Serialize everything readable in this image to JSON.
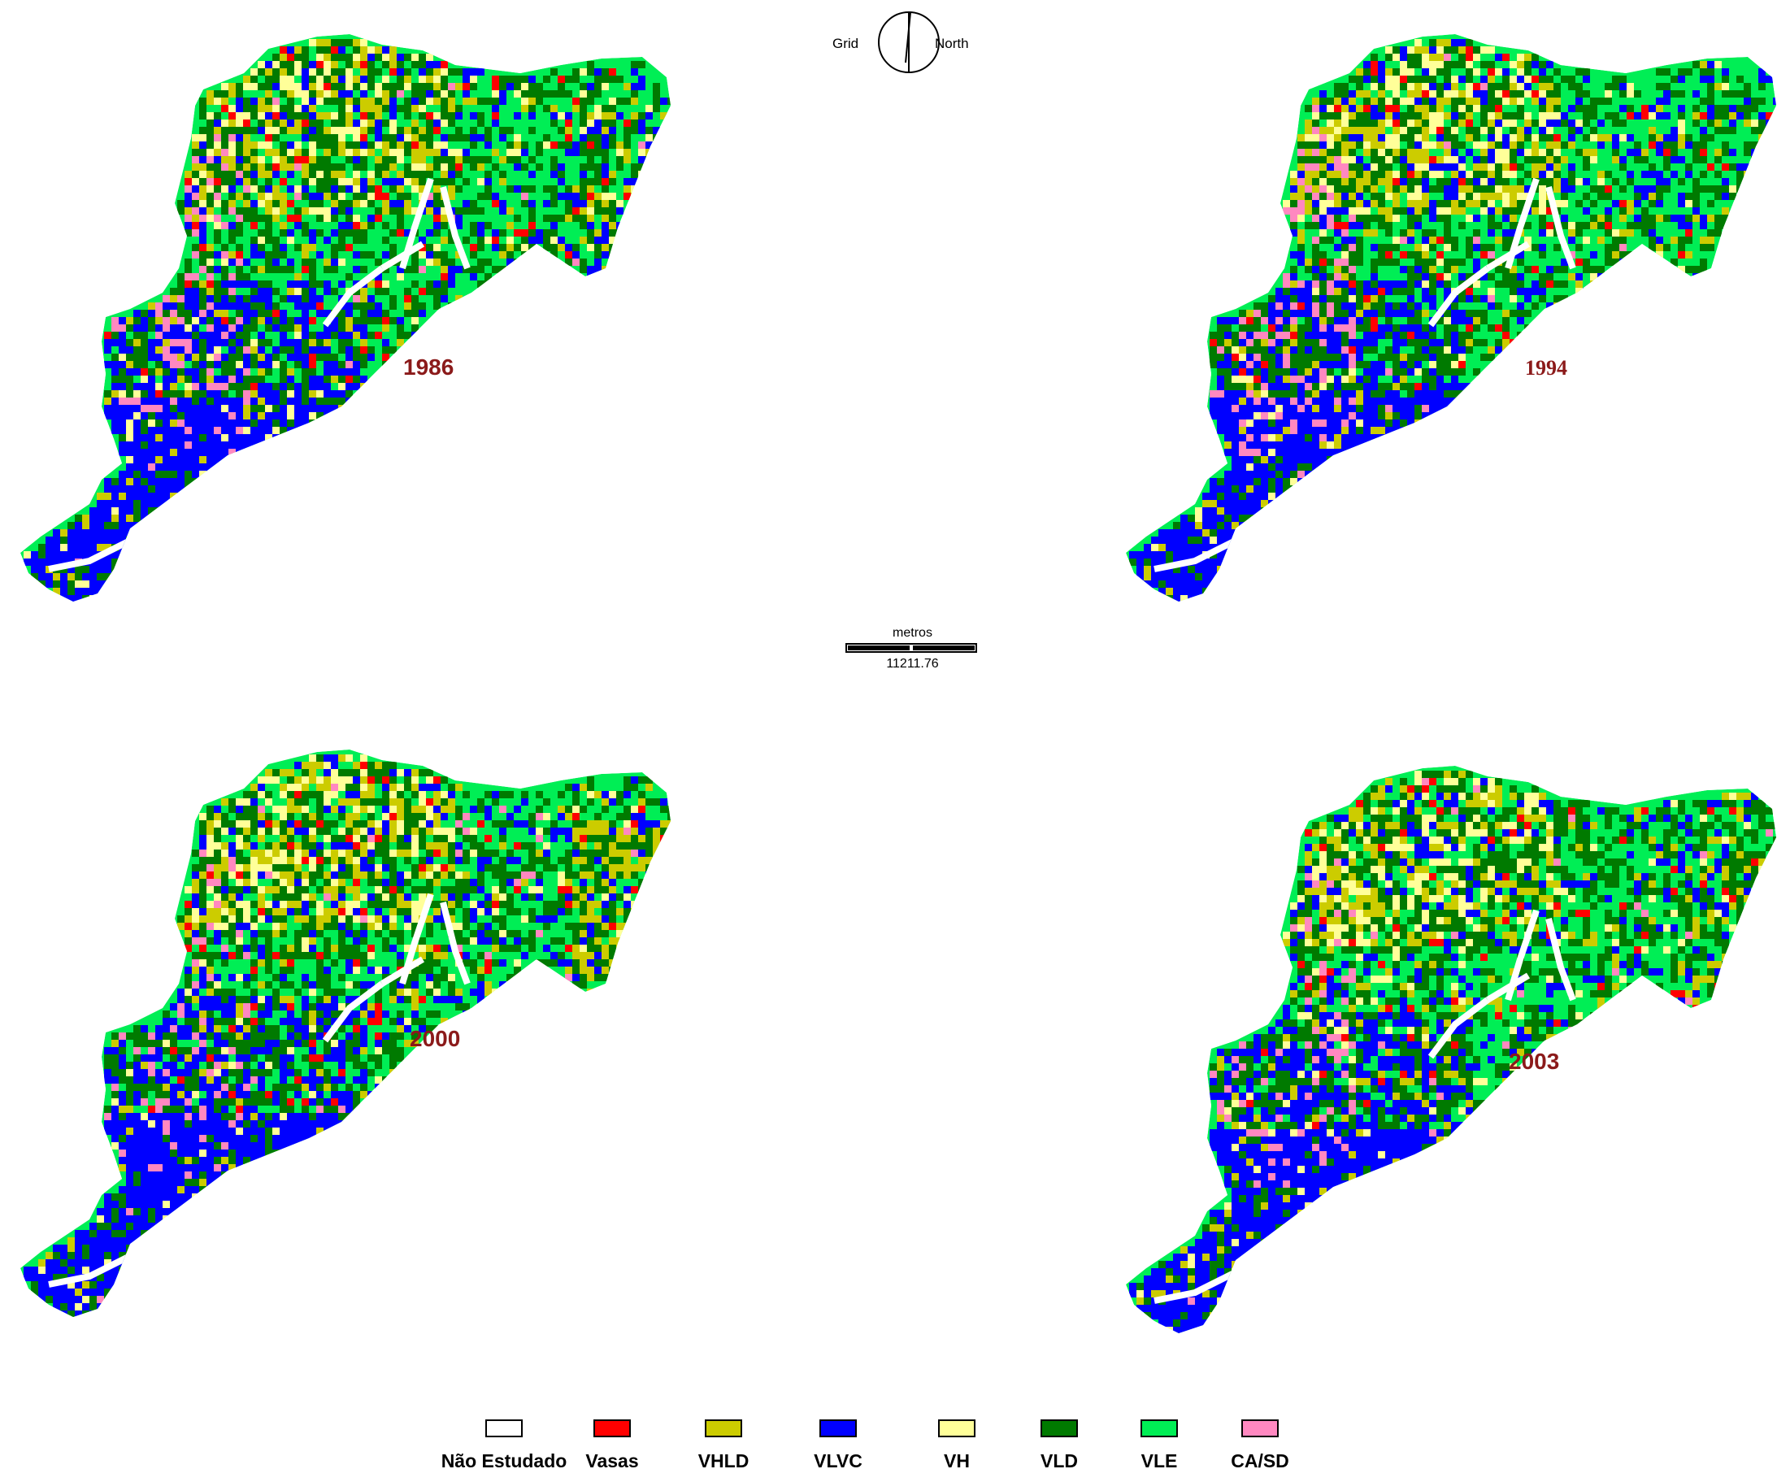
{
  "compass": {
    "left_label": "Grid",
    "right_label": "North"
  },
  "scale_bar": {
    "unit_label": "metros",
    "value": "11211.76"
  },
  "maps": [
    {
      "year": "1986"
    },
    {
      "year": "1994"
    },
    {
      "year": "2000"
    },
    {
      "year": "2003"
    }
  ],
  "legend": {
    "items": [
      {
        "label": "Não Estudado",
        "color": "#ffffff"
      },
      {
        "label": "Vasas",
        "color": "#ff0000"
      },
      {
        "label": "VHLD",
        "color": "#cccc00"
      },
      {
        "label": "VLVC",
        "color": "#0000ff"
      },
      {
        "label": "VH",
        "color": "#ffff99"
      },
      {
        "label": "VLD",
        "color": "#007a00"
      },
      {
        "label": "VLE",
        "color": "#00ee55"
      },
      {
        "label": "CA/SD",
        "color": "#ff88c0"
      }
    ]
  }
}
